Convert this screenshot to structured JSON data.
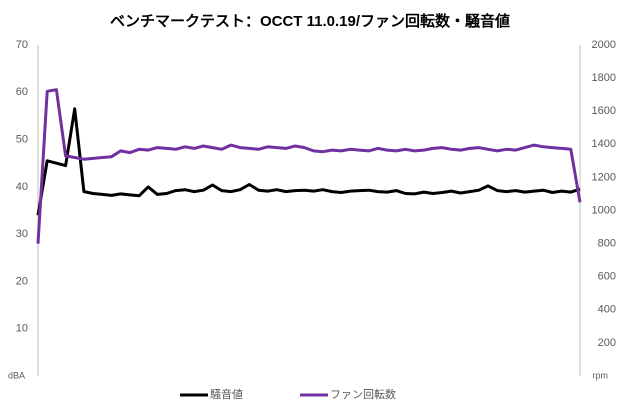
{
  "chart_data": {
    "type": "line",
    "title": "ベンチマークテスト：OCCT 11.0.19/ファン回転数・騒音値",
    "y_label": "dBA",
    "y2_label": "rpm",
    "categories": [
      null,
      null,
      null,
      null,
      null,
      null,
      null,
      null,
      null,
      null,
      null,
      null,
      null,
      null,
      null,
      null,
      null,
      null,
      null,
      null,
      null,
      null,
      null,
      null,
      null,
      null,
      null,
      null,
      null,
      null,
      null,
      null,
      null,
      null,
      null,
      null,
      null,
      null,
      null,
      null,
      null,
      null,
      null,
      null,
      null,
      null,
      null,
      null,
      null,
      null,
      null,
      null,
      null,
      null,
      null,
      null,
      null,
      null,
      null,
      null
    ],
    "ylim": [
      0,
      70
    ],
    "yticks": [
      10,
      20,
      30,
      40,
      50,
      60,
      70
    ],
    "y2lim": [
      0,
      2000
    ],
    "y2ticks": [
      200,
      400,
      600,
      800,
      1000,
      1200,
      1400,
      1600,
      1800,
      2000
    ],
    "grid": false,
    "legend": "bottom",
    "series": [
      {
        "name": "騒音値",
        "color": "#000000",
        "values": [
          34,
          45.5,
          45,
          44.5,
          56.5,
          39,
          38.6,
          38.4,
          38.2,
          38.5,
          38.3,
          38.1,
          40,
          38.4,
          38.6,
          39.2,
          39.4,
          39,
          39.3,
          40.4,
          39.2,
          39,
          39.4,
          40.5,
          39.3,
          39.1,
          39.4,
          39,
          39.2,
          39.3,
          39.1,
          39.4,
          39,
          38.8,
          39.1,
          39.2,
          39.3,
          39,
          38.9,
          39.2,
          38.6,
          38.5,
          38.9,
          38.6,
          38.8,
          39.1,
          38.7,
          39,
          39.3,
          40.2,
          39.2,
          39,
          39.2,
          38.9,
          39.1,
          39.3,
          38.8,
          39.1,
          38.9,
          39.5
        ]
      },
      {
        "name": "ファン回転数",
        "color": "#7030a0",
        "axis": "y2",
        "values": [
          800,
          1720,
          1730,
          1330,
          1320,
          1310,
          1315,
          1320,
          1325,
          1360,
          1350,
          1370,
          1365,
          1380,
          1375,
          1370,
          1385,
          1375,
          1390,
          1380,
          1370,
          1395,
          1380,
          1375,
          1370,
          1385,
          1380,
          1375,
          1390,
          1380,
          1360,
          1355,
          1365,
          1360,
          1370,
          1365,
          1360,
          1375,
          1365,
          1360,
          1370,
          1360,
          1365,
          1375,
          1380,
          1370,
          1365,
          1375,
          1380,
          1370,
          1360,
          1370,
          1365,
          1380,
          1395,
          1385,
          1380,
          1375,
          1370,
          1050
        ]
      }
    ]
  }
}
